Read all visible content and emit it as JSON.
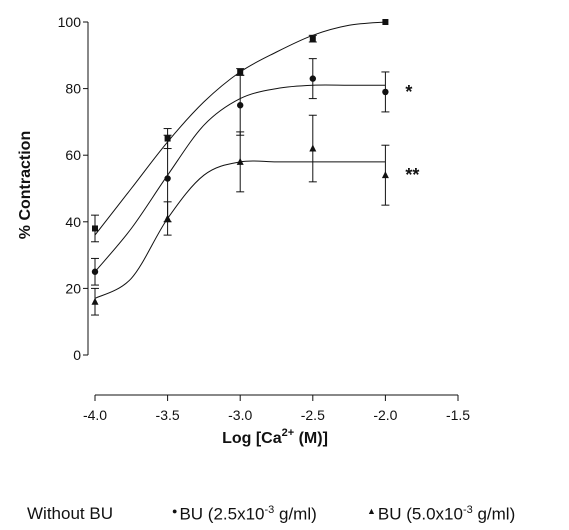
{
  "chart_data": {
    "type": "line",
    "title": "",
    "xlabel": "Log [Ca",
    "xlabel_sup": "2+",
    "xlabel_tail": " (M)]",
    "ylabel": "% Contraction",
    "xlim": [
      -4.0,
      -1.5
    ],
    "ylim": [
      0,
      100
    ],
    "x_ticks": [
      -4.0,
      -3.5,
      -3.0,
      -2.5,
      -2.0,
      -1.5
    ],
    "x_tick_labels": [
      "-4.0",
      "-3.5",
      "-3.0",
      "-2.5",
      "-2.0",
      "-1.5"
    ],
    "y_ticks": [
      0,
      20,
      40,
      60,
      80,
      100
    ],
    "y_tick_labels": [
      "0",
      "20",
      "40",
      "60",
      "80",
      "100"
    ],
    "grid": false,
    "legend_placement": "bottom",
    "series": [
      {
        "name": "Without BU",
        "marker": "square",
        "x": [
          -4.0,
          -3.5,
          -3.0,
          -2.5,
          -2.0
        ],
        "y": [
          38,
          65,
          85,
          95,
          100
        ],
        "err": [
          4,
          3,
          1,
          1,
          0
        ],
        "fit_x": [
          -4.0,
          -3.75,
          -3.5,
          -3.25,
          -3.0,
          -2.75,
          -2.5,
          -2.25,
          -2.0
        ],
        "fit_y": [
          36,
          50,
          64,
          76,
          85,
          91,
          96,
          99,
          100
        ]
      },
      {
        "name": "BU (2.5x10",
        "name_sup": "-3",
        "name_tail": " g/ml)",
        "marker": "circle",
        "x": [
          -4.0,
          -3.5,
          -3.0,
          -2.5,
          -2.0
        ],
        "y": [
          25,
          53,
          75,
          83,
          79
        ],
        "err": [
          4,
          13,
          9,
          6,
          6
        ],
        "annotation": "*",
        "fit_x": [
          -4.0,
          -3.75,
          -3.5,
          -3.25,
          -3.0,
          -2.75,
          -2.5,
          -2.25,
          -2.0
        ],
        "fit_y": [
          25,
          38,
          54,
          69,
          77,
          80,
          81,
          81,
          81
        ]
      },
      {
        "name": "BU (5.0x10",
        "name_sup": "-3",
        "name_tail": " g/ml)",
        "marker": "triangle",
        "x": [
          -4.0,
          -3.5,
          -3.0,
          -2.5,
          -2.0
        ],
        "y": [
          16,
          41,
          58,
          62,
          54
        ],
        "err": [
          4,
          5,
          9,
          10,
          9
        ],
        "annotation": "**",
        "fit_x": [
          -4.0,
          -3.75,
          -3.5,
          -3.25,
          -3.0,
          -2.75,
          -2.5,
          -2.25,
          -2.0
        ],
        "fit_y": [
          17,
          23,
          41,
          54,
          58,
          58,
          58,
          58,
          58
        ]
      }
    ]
  }
}
